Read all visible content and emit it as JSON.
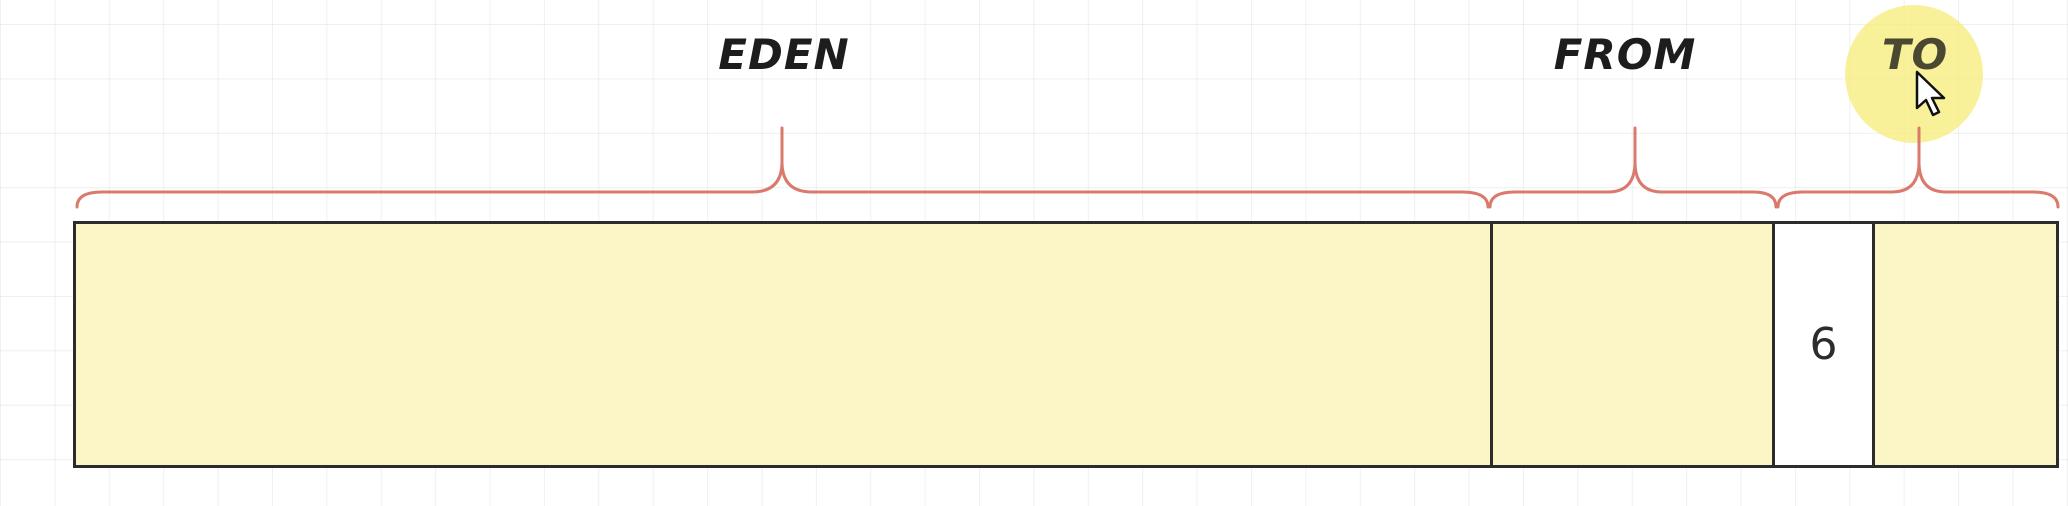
{
  "diagram": {
    "labels": {
      "eden": "EDEN",
      "from": "FROM",
      "to": "TO"
    },
    "object_value": "6",
    "colors": {
      "region_fill": "#fcf6c7",
      "brace_stroke": "#d97a6c",
      "outline": "#2c2c2c",
      "highlight": "#f6ec78"
    }
  }
}
